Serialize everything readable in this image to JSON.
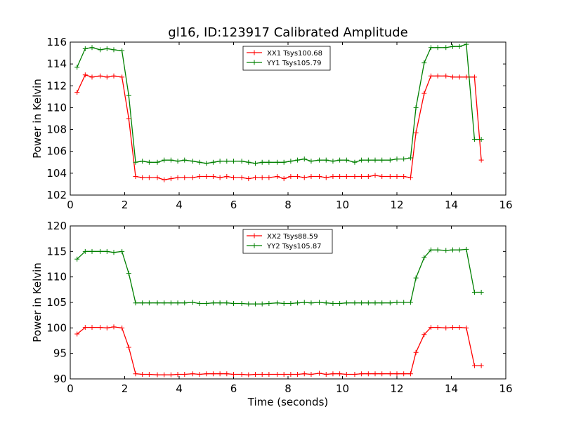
{
  "title": "gl16, ID:123917 Calibrated Amplitude",
  "chart_data": [
    {
      "type": "line",
      "ylabel": "Power in Kelvin",
      "xlabel": "",
      "xlim": [
        0,
        16
      ],
      "ylim": [
        102,
        116
      ],
      "xticks": [
        0,
        2,
        4,
        6,
        8,
        10,
        12,
        14,
        16
      ],
      "yticks": [
        102,
        104,
        106,
        108,
        110,
        112,
        114,
        116
      ],
      "legend_position": "upper center",
      "series": [
        {
          "name": "XX1 Tsys100.68",
          "color": "#ff0000",
          "x": [
            0.25,
            0.55,
            0.8,
            1.1,
            1.35,
            1.6,
            1.9,
            2.15,
            2.4,
            2.65,
            2.9,
            3.2,
            3.45,
            3.7,
            3.95,
            4.2,
            4.5,
            4.75,
            5.0,
            5.25,
            5.5,
            5.75,
            6.0,
            6.3,
            6.55,
            6.8,
            7.05,
            7.3,
            7.6,
            7.85,
            8.1,
            8.35,
            8.6,
            8.85,
            9.15,
            9.4,
            9.65,
            9.9,
            10.15,
            10.45,
            10.7,
            10.95,
            11.2,
            11.45,
            11.75,
            12.0,
            12.25,
            12.5,
            12.7,
            13.0,
            13.25,
            13.5,
            13.8,
            14.05,
            14.3,
            14.55,
            14.85,
            15.1
          ],
          "values": [
            111.4,
            113.0,
            112.8,
            112.9,
            112.8,
            112.9,
            112.8,
            109.0,
            103.7,
            103.6,
            103.6,
            103.6,
            103.4,
            103.5,
            103.6,
            103.6,
            103.6,
            103.7,
            103.7,
            103.7,
            103.6,
            103.7,
            103.6,
            103.6,
            103.5,
            103.6,
            103.6,
            103.6,
            103.7,
            103.5,
            103.7,
            103.7,
            103.6,
            103.7,
            103.7,
            103.6,
            103.7,
            103.7,
            103.7,
            103.7,
            103.7,
            103.7,
            103.8,
            103.7,
            103.7,
            103.7,
            103.7,
            103.6,
            107.7,
            111.3,
            112.9,
            112.9,
            112.9,
            112.8,
            112.8,
            112.8,
            112.8,
            105.2
          ]
        },
        {
          "name": "YY1 Tsys105.79",
          "color": "#008000",
          "x": [
            0.25,
            0.55,
            0.8,
            1.1,
            1.35,
            1.6,
            1.9,
            2.15,
            2.4,
            2.65,
            2.9,
            3.2,
            3.45,
            3.7,
            3.95,
            4.2,
            4.5,
            4.75,
            5.0,
            5.25,
            5.5,
            5.75,
            6.0,
            6.3,
            6.55,
            6.8,
            7.05,
            7.3,
            7.6,
            7.85,
            8.1,
            8.35,
            8.6,
            8.85,
            9.15,
            9.4,
            9.65,
            9.9,
            10.15,
            10.45,
            10.7,
            10.95,
            11.2,
            11.45,
            11.75,
            12.0,
            12.25,
            12.5,
            12.7,
            13.0,
            13.25,
            13.5,
            13.8,
            14.05,
            14.3,
            14.55,
            14.85,
            15.1
          ],
          "values": [
            113.7,
            115.4,
            115.5,
            115.3,
            115.4,
            115.3,
            115.2,
            111.1,
            105.0,
            105.1,
            105.0,
            105.0,
            105.2,
            105.2,
            105.1,
            105.2,
            105.1,
            105.0,
            104.9,
            105.0,
            105.1,
            105.1,
            105.1,
            105.1,
            105.0,
            104.9,
            105.0,
            105.0,
            105.0,
            105.0,
            105.1,
            105.2,
            105.3,
            105.1,
            105.2,
            105.2,
            105.1,
            105.2,
            105.2,
            105.0,
            105.2,
            105.2,
            105.2,
            105.2,
            105.2,
            105.3,
            105.3,
            105.4,
            110.0,
            114.1,
            115.5,
            115.5,
            115.5,
            115.6,
            115.6,
            115.8,
            107.1,
            107.1
          ]
        }
      ]
    },
    {
      "type": "line",
      "ylabel": "Power in Kelvin",
      "xlabel": "Time (seconds)",
      "xlim": [
        0,
        16
      ],
      "ylim": [
        90,
        120
      ],
      "xticks": [
        0,
        2,
        4,
        6,
        8,
        10,
        12,
        14,
        16
      ],
      "yticks": [
        90,
        95,
        100,
        105,
        110,
        115,
        120
      ],
      "legend_position": "upper center",
      "series": [
        {
          "name": "XX2 Tsys88.59",
          "color": "#ff0000",
          "x": [
            0.25,
            0.55,
            0.8,
            1.1,
            1.35,
            1.6,
            1.9,
            2.15,
            2.4,
            2.65,
            2.9,
            3.2,
            3.45,
            3.7,
            3.95,
            4.2,
            4.5,
            4.75,
            5.0,
            5.25,
            5.5,
            5.75,
            6.0,
            6.3,
            6.55,
            6.8,
            7.05,
            7.3,
            7.6,
            7.85,
            8.1,
            8.35,
            8.6,
            8.85,
            9.15,
            9.4,
            9.65,
            9.9,
            10.15,
            10.45,
            10.7,
            10.95,
            11.2,
            11.45,
            11.75,
            12.0,
            12.25,
            12.5,
            12.7,
            13.0,
            13.25,
            13.5,
            13.8,
            14.05,
            14.3,
            14.55,
            14.85,
            15.1
          ],
          "values": [
            98.8,
            100.1,
            100.1,
            100.1,
            100.0,
            100.2,
            100.0,
            96.2,
            91.0,
            90.9,
            90.9,
            90.8,
            90.8,
            90.8,
            90.9,
            90.9,
            91.0,
            90.9,
            91.0,
            91.0,
            91.0,
            91.0,
            90.9,
            90.9,
            90.8,
            90.9,
            90.9,
            90.9,
            90.9,
            90.9,
            90.9,
            90.9,
            91.0,
            90.9,
            91.1,
            90.9,
            91.0,
            91.0,
            90.9,
            90.9,
            91.0,
            91.0,
            91.0,
            91.0,
            91.0,
            91.0,
            91.0,
            91.0,
            95.2,
            98.7,
            100.1,
            100.1,
            100.0,
            100.1,
            100.1,
            100.0,
            92.6,
            92.6
          ]
        },
        {
          "name": "YY2 Tsys105.87",
          "color": "#008000",
          "x": [
            0.25,
            0.55,
            0.8,
            1.1,
            1.35,
            1.6,
            1.9,
            2.15,
            2.4,
            2.65,
            2.9,
            3.2,
            3.45,
            3.7,
            3.95,
            4.2,
            4.5,
            4.75,
            5.0,
            5.25,
            5.5,
            5.75,
            6.0,
            6.3,
            6.55,
            6.8,
            7.05,
            7.3,
            7.6,
            7.85,
            8.1,
            8.35,
            8.6,
            8.85,
            9.15,
            9.4,
            9.65,
            9.9,
            10.15,
            10.45,
            10.7,
            10.95,
            11.2,
            11.45,
            11.75,
            12.0,
            12.25,
            12.5,
            12.7,
            13.0,
            13.25,
            13.5,
            13.8,
            14.05,
            14.3,
            14.55,
            14.85,
            15.1
          ],
          "values": [
            113.5,
            115.0,
            115.0,
            115.0,
            115.0,
            114.8,
            115.0,
            110.7,
            104.9,
            104.9,
            104.9,
            104.9,
            104.9,
            104.9,
            104.9,
            104.9,
            105.0,
            104.8,
            104.8,
            104.9,
            104.9,
            104.9,
            104.8,
            104.8,
            104.7,
            104.7,
            104.7,
            104.8,
            104.9,
            104.8,
            104.8,
            104.9,
            105.0,
            104.9,
            105.0,
            104.9,
            104.8,
            104.8,
            104.9,
            104.9,
            104.9,
            104.9,
            104.9,
            104.9,
            104.9,
            105.0,
            105.0,
            105.0,
            109.8,
            113.8,
            115.3,
            115.3,
            115.2,
            115.3,
            115.3,
            115.4,
            107.0,
            107.0
          ]
        }
      ]
    }
  ]
}
